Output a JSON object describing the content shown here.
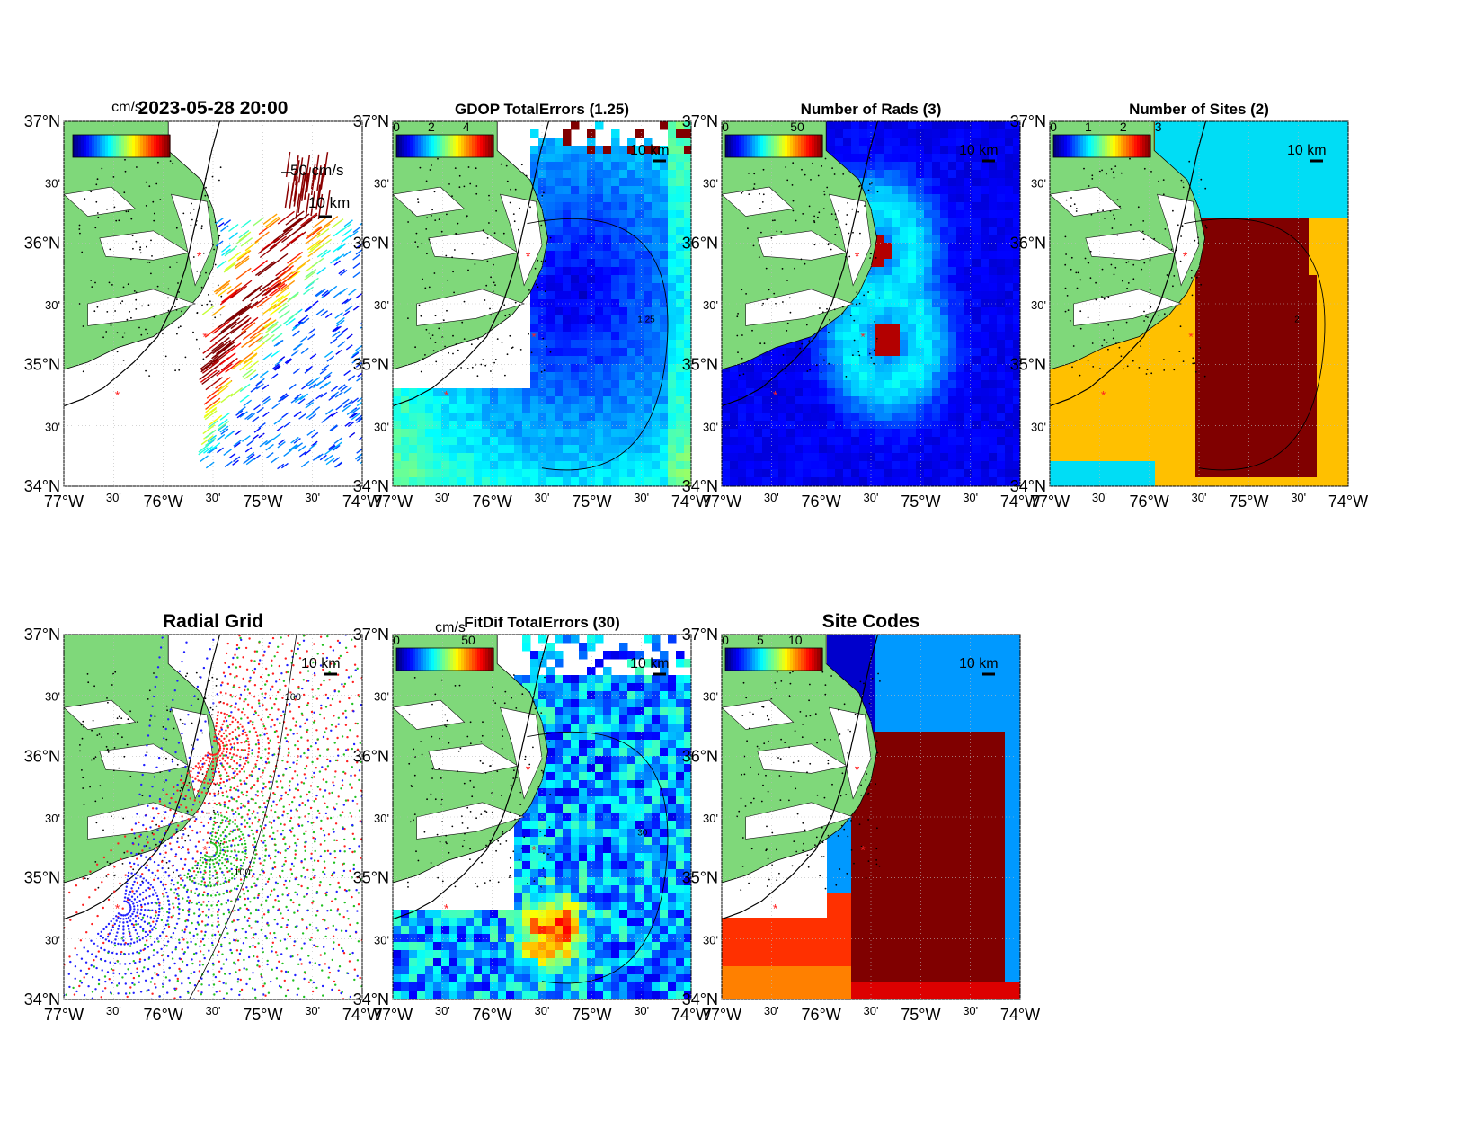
{
  "figure": {
    "ylabels": [
      "37°N",
      "30'",
      "36°N",
      "30'",
      "35°N",
      "30'",
      "34°N"
    ],
    "xlabels": [
      "77°W",
      "30'",
      "76°W",
      "30'",
      "75°W",
      "30'",
      "74°W"
    ],
    "scale_label": "10 km",
    "colors": {
      "land": "#7fd87a",
      "site_marker": "#ff2222",
      "contour": "#000000"
    }
  },
  "panels": [
    {
      "id": "currents",
      "title": "2023-05-28 20:00",
      "cb_unit": "cm/s",
      "cb_ticks": [],
      "vector_label": "50 cm/s",
      "background": "vectors"
    },
    {
      "id": "gdop",
      "title": "GDOP TotalErrors (1.25)",
      "cb_unit": "",
      "cb_ticks": [
        "0",
        "2",
        "4"
      ],
      "contour_label": "1.25",
      "background": "field-gdop"
    },
    {
      "id": "nrads",
      "title": "Number of Rads (3)",
      "cb_unit": "",
      "cb_ticks": [
        "0",
        "50"
      ],
      "background": "field-rads"
    },
    {
      "id": "nsites",
      "title": "Number of Sites (2)",
      "cb_unit": "",
      "cb_ticks": [
        "0",
        "1",
        "2",
        "3"
      ],
      "contour_label": "2",
      "background": "field-sites"
    },
    {
      "id": "radialgrid",
      "title": "Radial Grid",
      "cb_unit": "",
      "cb_ticks": [],
      "contour_label": "100",
      "background": "radial-grid"
    },
    {
      "id": "fitdif",
      "title": "FitDif TotalErrors (30)",
      "cb_unit": "cm/s",
      "cb_ticks": [
        "0",
        "50"
      ],
      "contour_label": "30",
      "background": "field-fitdif"
    },
    {
      "id": "sitecodes",
      "title": "Site Codes",
      "cb_unit": "",
      "cb_ticks": [
        "0",
        "5",
        "10"
      ],
      "background": "field-codes"
    }
  ]
}
